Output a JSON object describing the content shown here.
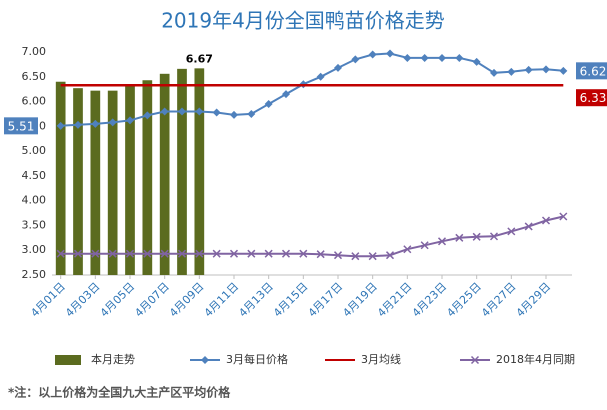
{
  "chart_data": {
    "type": "combo",
    "title": "2019年4月份全国鸭苗价格走势",
    "categories": [
      "4月01日",
      null,
      "4月03日",
      null,
      "4月05日",
      null,
      "4月07日",
      null,
      "4月09日",
      null,
      "4月11日",
      null,
      "4月13日",
      null,
      "4月15日",
      null,
      "4月17日",
      null,
      "4月19日",
      null,
      "4月21日",
      null,
      "4月23日",
      null,
      "4月25日",
      null,
      "4月27日",
      null,
      "4月29日",
      null
    ],
    "ylim": [
      2.5,
      7.0
    ],
    "yticks": [
      {
        "value": 2.5,
        "label": "2.50"
      },
      {
        "value": 3.0,
        "label": "3.00"
      },
      {
        "value": 3.5,
        "label": "3.50"
      },
      {
        "value": 4.0,
        "label": "4.00"
      },
      {
        "value": 4.5,
        "label": "4.50"
      },
      {
        "value": 5.0,
        "label": "5.00"
      },
      {
        "value": 5.5,
        "label": "5.50"
      },
      {
        "value": 6.0,
        "label": "6.00"
      },
      {
        "value": 6.5,
        "label": "6.50"
      },
      {
        "value": 7.0,
        "label": "7.00"
      }
    ],
    "grid": false,
    "legend": "bottom",
    "series": [
      {
        "name": "本月走势",
        "type": "bar",
        "color": "#5b6b1f",
        "values": [
          6.4,
          6.27,
          6.22,
          6.22,
          6.33,
          6.43,
          6.56,
          6.66,
          6.67,
          null,
          null,
          null,
          null,
          null,
          null,
          null,
          null,
          null,
          null,
          null,
          null,
          null,
          null,
          null,
          null,
          null,
          null,
          null,
          null,
          null
        ],
        "value_labels": [
          null,
          null,
          null,
          null,
          null,
          null,
          null,
          null,
          "6.67",
          null,
          null,
          null,
          null,
          null,
          null,
          null,
          null,
          null,
          null,
          null,
          null,
          null,
          null,
          null,
          null,
          null,
          null,
          null,
          null,
          null
        ]
      },
      {
        "name": "3月每日价格",
        "type": "line",
        "marker": "diamond",
        "color": "#4f81bd",
        "values": [
          5.51,
          5.53,
          5.55,
          5.58,
          5.62,
          5.72,
          5.8,
          5.8,
          5.8,
          5.78,
          5.73,
          5.75,
          5.95,
          6.15,
          6.35,
          6.5,
          6.68,
          6.85,
          6.95,
          6.97,
          6.88,
          6.88,
          6.88,
          6.88,
          6.8,
          6.58,
          6.6,
          6.64,
          6.65,
          6.62
        ],
        "value_labels": [
          "5.51",
          null,
          null,
          null,
          null,
          null,
          null,
          null,
          null,
          null,
          null,
          null,
          null,
          null,
          null,
          null,
          null,
          null,
          null,
          null,
          null,
          null,
          null,
          null,
          null,
          null,
          null,
          null,
          null,
          "6.62"
        ]
      },
      {
        "name": "3月均线",
        "type": "line",
        "marker": "none",
        "color": "#c00000",
        "values": [
          6.33,
          6.33,
          6.33,
          6.33,
          6.33,
          6.33,
          6.33,
          6.33,
          6.33,
          6.33,
          6.33,
          6.33,
          6.33,
          6.33,
          6.33,
          6.33,
          6.33,
          6.33,
          6.33,
          6.33,
          6.33,
          6.33,
          6.33,
          6.33,
          6.33,
          6.33,
          6.33,
          6.33,
          6.33,
          6.33
        ],
        "value_labels": [
          null,
          null,
          null,
          null,
          null,
          null,
          null,
          null,
          null,
          null,
          null,
          null,
          null,
          null,
          null,
          null,
          null,
          null,
          null,
          null,
          null,
          null,
          null,
          null,
          null,
          null,
          null,
          null,
          null,
          "6.33"
        ]
      },
      {
        "name": "2018年4月同期",
        "type": "line",
        "marker": "x",
        "color": "#8064a2",
        "values": [
          2.93,
          2.93,
          2.93,
          2.93,
          2.93,
          2.93,
          2.93,
          2.93,
          2.93,
          2.93,
          2.93,
          2.93,
          2.93,
          2.93,
          2.93,
          2.92,
          2.9,
          2.88,
          2.88,
          2.9,
          3.02,
          3.1,
          3.18,
          3.25,
          3.27,
          3.28,
          3.38,
          3.48,
          3.6,
          3.68
        ]
      }
    ],
    "footnote": "*注：以上价格为全国九大主产区平均价格"
  }
}
